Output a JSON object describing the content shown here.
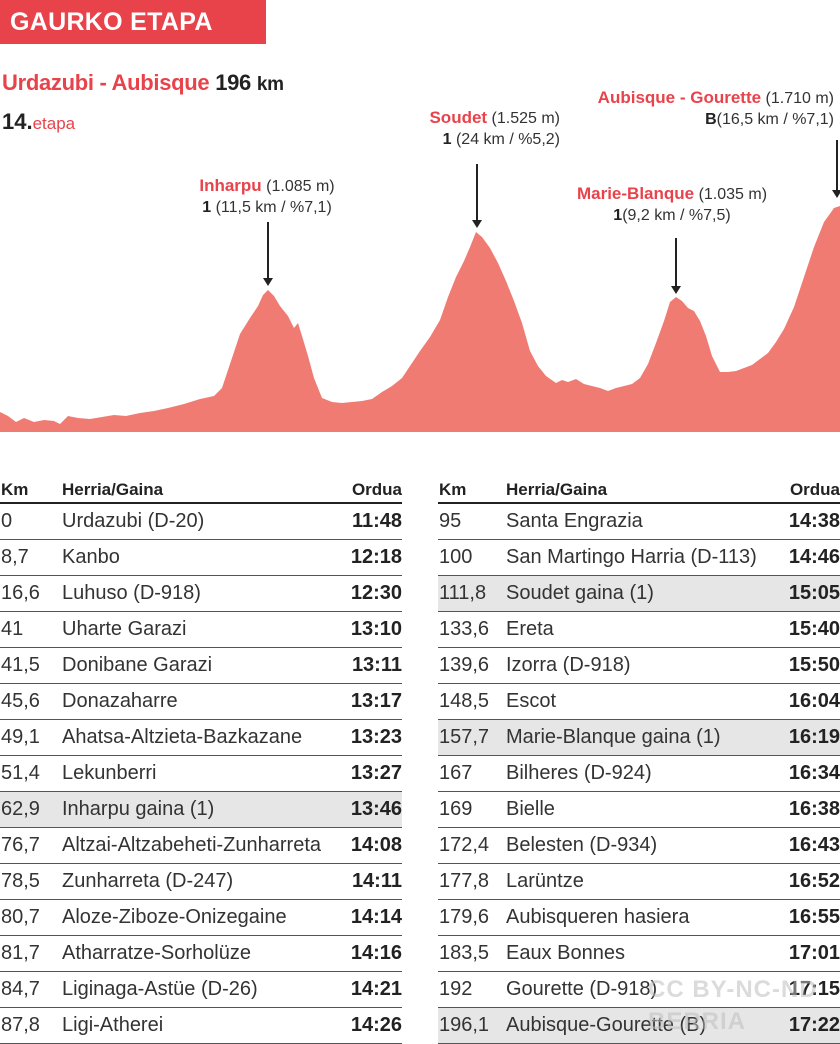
{
  "banner": "GAURKO ETAPA",
  "route": {
    "name": "Urdazubi - Aubisque",
    "distance": "196",
    "unit": "km"
  },
  "stage": {
    "number": "14.",
    "label": "etapa"
  },
  "climbs": [
    {
      "name": "Inharpu",
      "altitude": "(1.085 m)",
      "category": "1",
      "detail": "(11,5 km / %7,1)"
    },
    {
      "name": "Soudet",
      "altitude": "(1.525 m)",
      "category": "1",
      "detail": "(24 km / %5,2)"
    },
    {
      "name": "Marie-Blanque",
      "altitude": "(1.035 m)",
      "category": "1",
      "detail": "(9,2 km / %7,5)"
    },
    {
      "name": "Aubisque - Gourette",
      "altitude": "(1.710 m)",
      "category": "B",
      "detail": "(16,5 km / %7,1)"
    }
  ],
  "table": {
    "headers": {
      "km": "Km",
      "place": "Herria/Gaina",
      "time": "Ordua"
    },
    "left": [
      {
        "km": "0",
        "place": "Urdazubi (D-20)",
        "time": "11:48",
        "hl": false
      },
      {
        "km": "8,7",
        "place": "Kanbo",
        "time": "12:18",
        "hl": false
      },
      {
        "km": "16,6",
        "place": "Luhuso (D-918)",
        "time": "12:30",
        "hl": false
      },
      {
        "km": "41",
        "place": "Uharte Garazi",
        "time": "13:10",
        "hl": false
      },
      {
        "km": "41,5",
        "place": "Donibane Garazi",
        "time": "13:11",
        "hl": false
      },
      {
        "km": "45,6",
        "place": "Donazaharre",
        "time": "13:17",
        "hl": false
      },
      {
        "km": "49,1",
        "place": "Ahatsa-Altzieta-Bazkazane",
        "time": "13:23",
        "hl": false
      },
      {
        "km": "51,4",
        "place": "Lekunberri",
        "time": "13:27",
        "hl": false
      },
      {
        "km": "62,9",
        "place": "Inharpu gaina (1)",
        "time": "13:46",
        "hl": true
      },
      {
        "km": "76,7",
        "place": "Altzai-Altzabeheti-Zunharreta",
        "time": "14:08",
        "hl": false
      },
      {
        "km": "78,5",
        "place": "Zunharreta (D-247)",
        "time": "14:11",
        "hl": false
      },
      {
        "km": "80,7",
        "place": "Aloze-Ziboze-Onizegaine",
        "time": "14:14",
        "hl": false
      },
      {
        "km": "81,7",
        "place": "Atharratze-Sorholüze",
        "time": "14:16",
        "hl": false
      },
      {
        "km": "84,7",
        "place": "Liginaga-Astüe (D-26)",
        "time": "14:21",
        "hl": false
      },
      {
        "km": "87,8",
        "place": "Ligi-Atherei",
        "time": "14:26",
        "hl": false
      }
    ],
    "right": [
      {
        "km": "95",
        "place": "Santa Engrazia",
        "time": "14:38",
        "hl": false
      },
      {
        "km": "100",
        "place": "San Martingo Harria (D-113)",
        "time": "14:46",
        "hl": false
      },
      {
        "km": "111,8",
        "place": "Soudet gaina (1)",
        "time": "15:05",
        "hl": true
      },
      {
        "km": "133,6",
        "place": "Ereta",
        "time": "15:40",
        "hl": false
      },
      {
        "km": "139,6",
        "place": "Izorra (D-918)",
        "time": "15:50",
        "hl": false
      },
      {
        "km": "148,5",
        "place": "Escot",
        "time": "16:04",
        "hl": false
      },
      {
        "km": "157,7",
        "place": "Marie-Blanque gaina (1)",
        "time": "16:19",
        "hl": true
      },
      {
        "km": "167",
        "place": "Bilheres (D-924)",
        "time": "16:34",
        "hl": false
      },
      {
        "km": "169",
        "place": "Bielle",
        "time": "16:38",
        "hl": false
      },
      {
        "km": "172,4",
        "place": "Belesten (D-934)",
        "time": "16:43",
        "hl": false
      },
      {
        "km": "177,8",
        "place": "Larüntze",
        "time": "16:52",
        "hl": false
      },
      {
        "km": "179,6",
        "place": "Aubisqueren hasiera",
        "time": "16:55",
        "hl": false
      },
      {
        "km": "183,5",
        "place": "Eaux Bonnes",
        "time": "17:01",
        "hl": false
      },
      {
        "km": "192",
        "place": "Gourette (D-918)",
        "time": "17:15",
        "hl": false
      },
      {
        "km": "196,1",
        "place": "Aubisque-Gourette (B)",
        "time": "17:22",
        "hl": true
      }
    ]
  },
  "colors": {
    "accent": "#e8434b",
    "profile_fill": "#f07b73",
    "highlight_row": "#e6e6e6"
  },
  "watermark": {
    "line1": "CC BY-NC-ND",
    "line2": "BERRIA"
  }
}
